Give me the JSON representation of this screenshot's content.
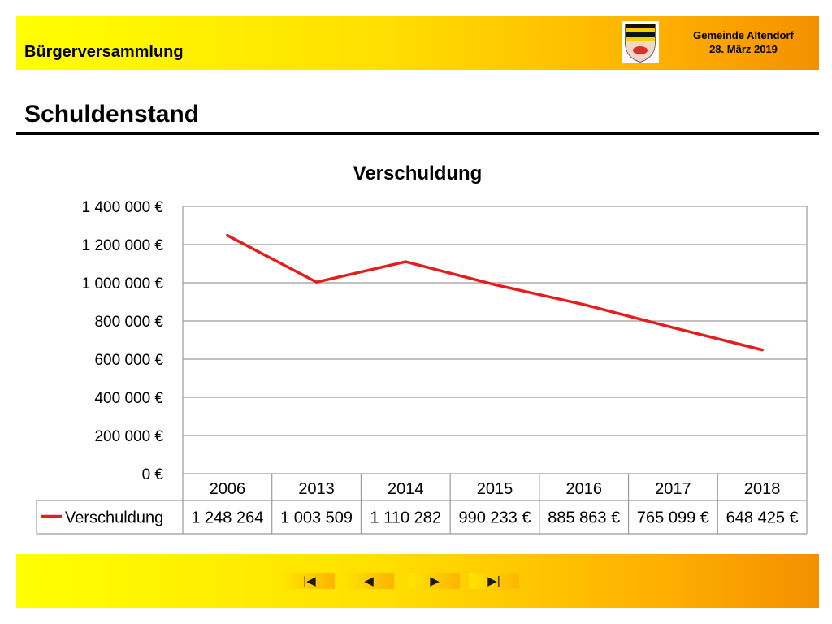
{
  "header": {
    "event_title": "Bürgerversammlung",
    "organization": "Gemeinde Altendorf",
    "date": "28. März 2019",
    "crest_icon": "municipal-coat-of-arms"
  },
  "page_title": "Schuldenstand",
  "chart_data": {
    "type": "line",
    "title": "Verschuldung",
    "categories": [
      "2006",
      "2013",
      "2014",
      "2015",
      "2016",
      "2017",
      "2018"
    ],
    "ylim": [
      0,
      1400000
    ],
    "yticks": [
      0,
      200000,
      400000,
      600000,
      800000,
      1000000,
      1200000,
      1400000
    ],
    "ytick_labels": [
      "0 €",
      "200 000 €",
      "400 000 €",
      "600 000 €",
      "800 000 €",
      "1 000 000 €",
      "1 200 000 €",
      "1 400 000 €"
    ],
    "grid": true,
    "series": [
      {
        "name": "Verschuldung",
        "color": "#e31e1e",
        "values": [
          1248264,
          1003509,
          1110282,
          990233,
          885863,
          765099,
          648425
        ],
        "table_labels": [
          "1 248 264",
          "1 003 509",
          "1 110 282",
          "990 233 €",
          "885 863 €",
          "765 099 €",
          "648 425 €"
        ]
      }
    ]
  },
  "navigation": {
    "first_icon": "first-slide-icon",
    "prev_icon": "previous-slide-icon",
    "next_icon": "next-slide-icon",
    "last_icon": "last-slide-icon",
    "first_glyph": "|◀",
    "prev_glyph": "◀",
    "next_glyph": "▶",
    "last_glyph": "▶|"
  }
}
